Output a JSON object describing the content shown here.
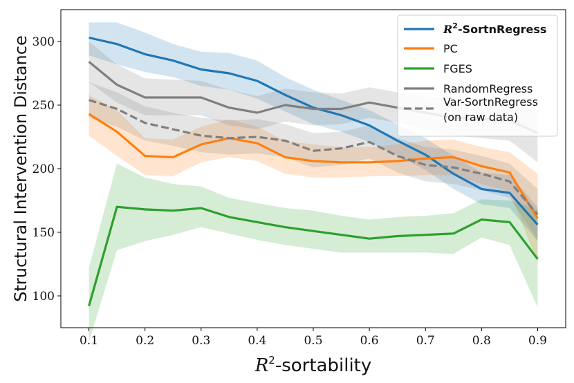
{
  "chart_data": {
    "type": "line",
    "title": "",
    "xlabel": "-sortability",
    "xlabel_prefix": "R",
    "xlabel_superscript": "2",
    "ylabel": "Structural Intervention Distance",
    "xlim": [
      0.05,
      0.95
    ],
    "ylim": [
      75,
      325
    ],
    "x_ticks": [
      0.1,
      0.2,
      0.3,
      0.4,
      0.5,
      0.6,
      0.7,
      0.8,
      0.9
    ],
    "x_tick_labels": [
      "0.1",
      "0.2",
      "0.3",
      "0.4",
      "0.5",
      "0.6",
      "0.7",
      "0.8",
      "0.9"
    ],
    "y_ticks": [
      100,
      150,
      200,
      250,
      300
    ],
    "y_tick_labels": [
      "100",
      "150",
      "200",
      "250",
      "300"
    ],
    "grid": false,
    "legend_position": "top-right",
    "x": [
      0.1,
      0.15,
      0.2,
      0.25,
      0.3,
      0.35,
      0.4,
      0.45,
      0.5,
      0.55,
      0.6,
      0.65,
      0.7,
      0.75,
      0.8,
      0.85,
      0.9
    ],
    "series": [
      {
        "name": "-SortnRegress",
        "name_prefix": "R",
        "name_superscript": "2",
        "bold": true,
        "color": "#1f77b4",
        "dashed": false,
        "values": [
          303,
          298,
          290,
          285,
          278,
          275,
          269,
          258,
          248,
          242,
          234,
          222,
          211,
          196,
          184,
          181,
          156
        ],
        "upper": [
          315,
          315,
          307,
          298,
          292,
          291,
          285,
          272,
          262,
          254,
          246,
          235,
          224,
          210,
          197,
          195,
          170
        ],
        "lower": [
          289,
          282,
          276,
          272,
          265,
          262,
          255,
          245,
          235,
          229,
          221,
          210,
          199,
          184,
          172,
          169,
          143
        ]
      },
      {
        "name": "PC",
        "color": "#ff7f0e",
        "dashed": false,
        "values": [
          243,
          229,
          210,
          209,
          219,
          224,
          220,
          209,
          206,
          205,
          205,
          206,
          208,
          209,
          202,
          197,
          161
        ],
        "upper": [
          258,
          246,
          224,
          223,
          233,
          239,
          233,
          222,
          219,
          217,
          217,
          219,
          222,
          223,
          217,
          213,
          196
        ],
        "lower": [
          226,
          210,
          195,
          194,
          205,
          209,
          206,
          196,
          193,
          193,
          194,
          194,
          195,
          195,
          188,
          182,
          126
        ]
      },
      {
        "name": "FGES",
        "color": "#2ca02c",
        "dashed": false,
        "values": [
          92,
          170,
          168,
          167,
          169,
          162,
          158,
          154,
          151,
          148,
          145,
          147,
          148,
          149,
          160,
          158,
          129
        ],
        "upper": [
          122,
          204,
          193,
          188,
          186,
          177,
          173,
          169,
          167,
          163,
          160,
          162,
          163,
          165,
          176,
          175,
          168
        ],
        "lower": [
          64,
          136,
          143,
          148,
          154,
          149,
          144,
          140,
          137,
          134,
          134,
          134,
          134,
          133,
          146,
          140,
          91
        ]
      },
      {
        "name": "RandomRegress",
        "color": "#7f7f7f",
        "dashed": false,
        "values": [
          284,
          266,
          256,
          256,
          256,
          248,
          244,
          250,
          247,
          247,
          252,
          248,
          244,
          240,
          239,
          238,
          228
        ],
        "upper": [
          300,
          282,
          271,
          270,
          269,
          262,
          257,
          263,
          260,
          259,
          264,
          260,
          257,
          254,
          253,
          252,
          245
        ],
        "lower": [
          268,
          252,
          242,
          242,
          242,
          234,
          231,
          237,
          234,
          235,
          240,
          236,
          231,
          226,
          224,
          222,
          205
        ]
      },
      {
        "name": "Var-SortnRegress",
        "name_line2": "(on raw data)",
        "color": "#7f7f7f",
        "dashed": true,
        "values": [
          254,
          247,
          236,
          231,
          226,
          224,
          225,
          222,
          214,
          216,
          221,
          210,
          203,
          201,
          196,
          190,
          164
        ],
        "upper": [
          268,
          260,
          249,
          244,
          240,
          238,
          239,
          235,
          228,
          229,
          234,
          224,
          217,
          215,
          210,
          204,
          184
        ],
        "lower": [
          240,
          233,
          222,
          218,
          213,
          211,
          212,
          209,
          201,
          203,
          208,
          197,
          190,
          188,
          183,
          177,
          144
        ]
      }
    ]
  }
}
